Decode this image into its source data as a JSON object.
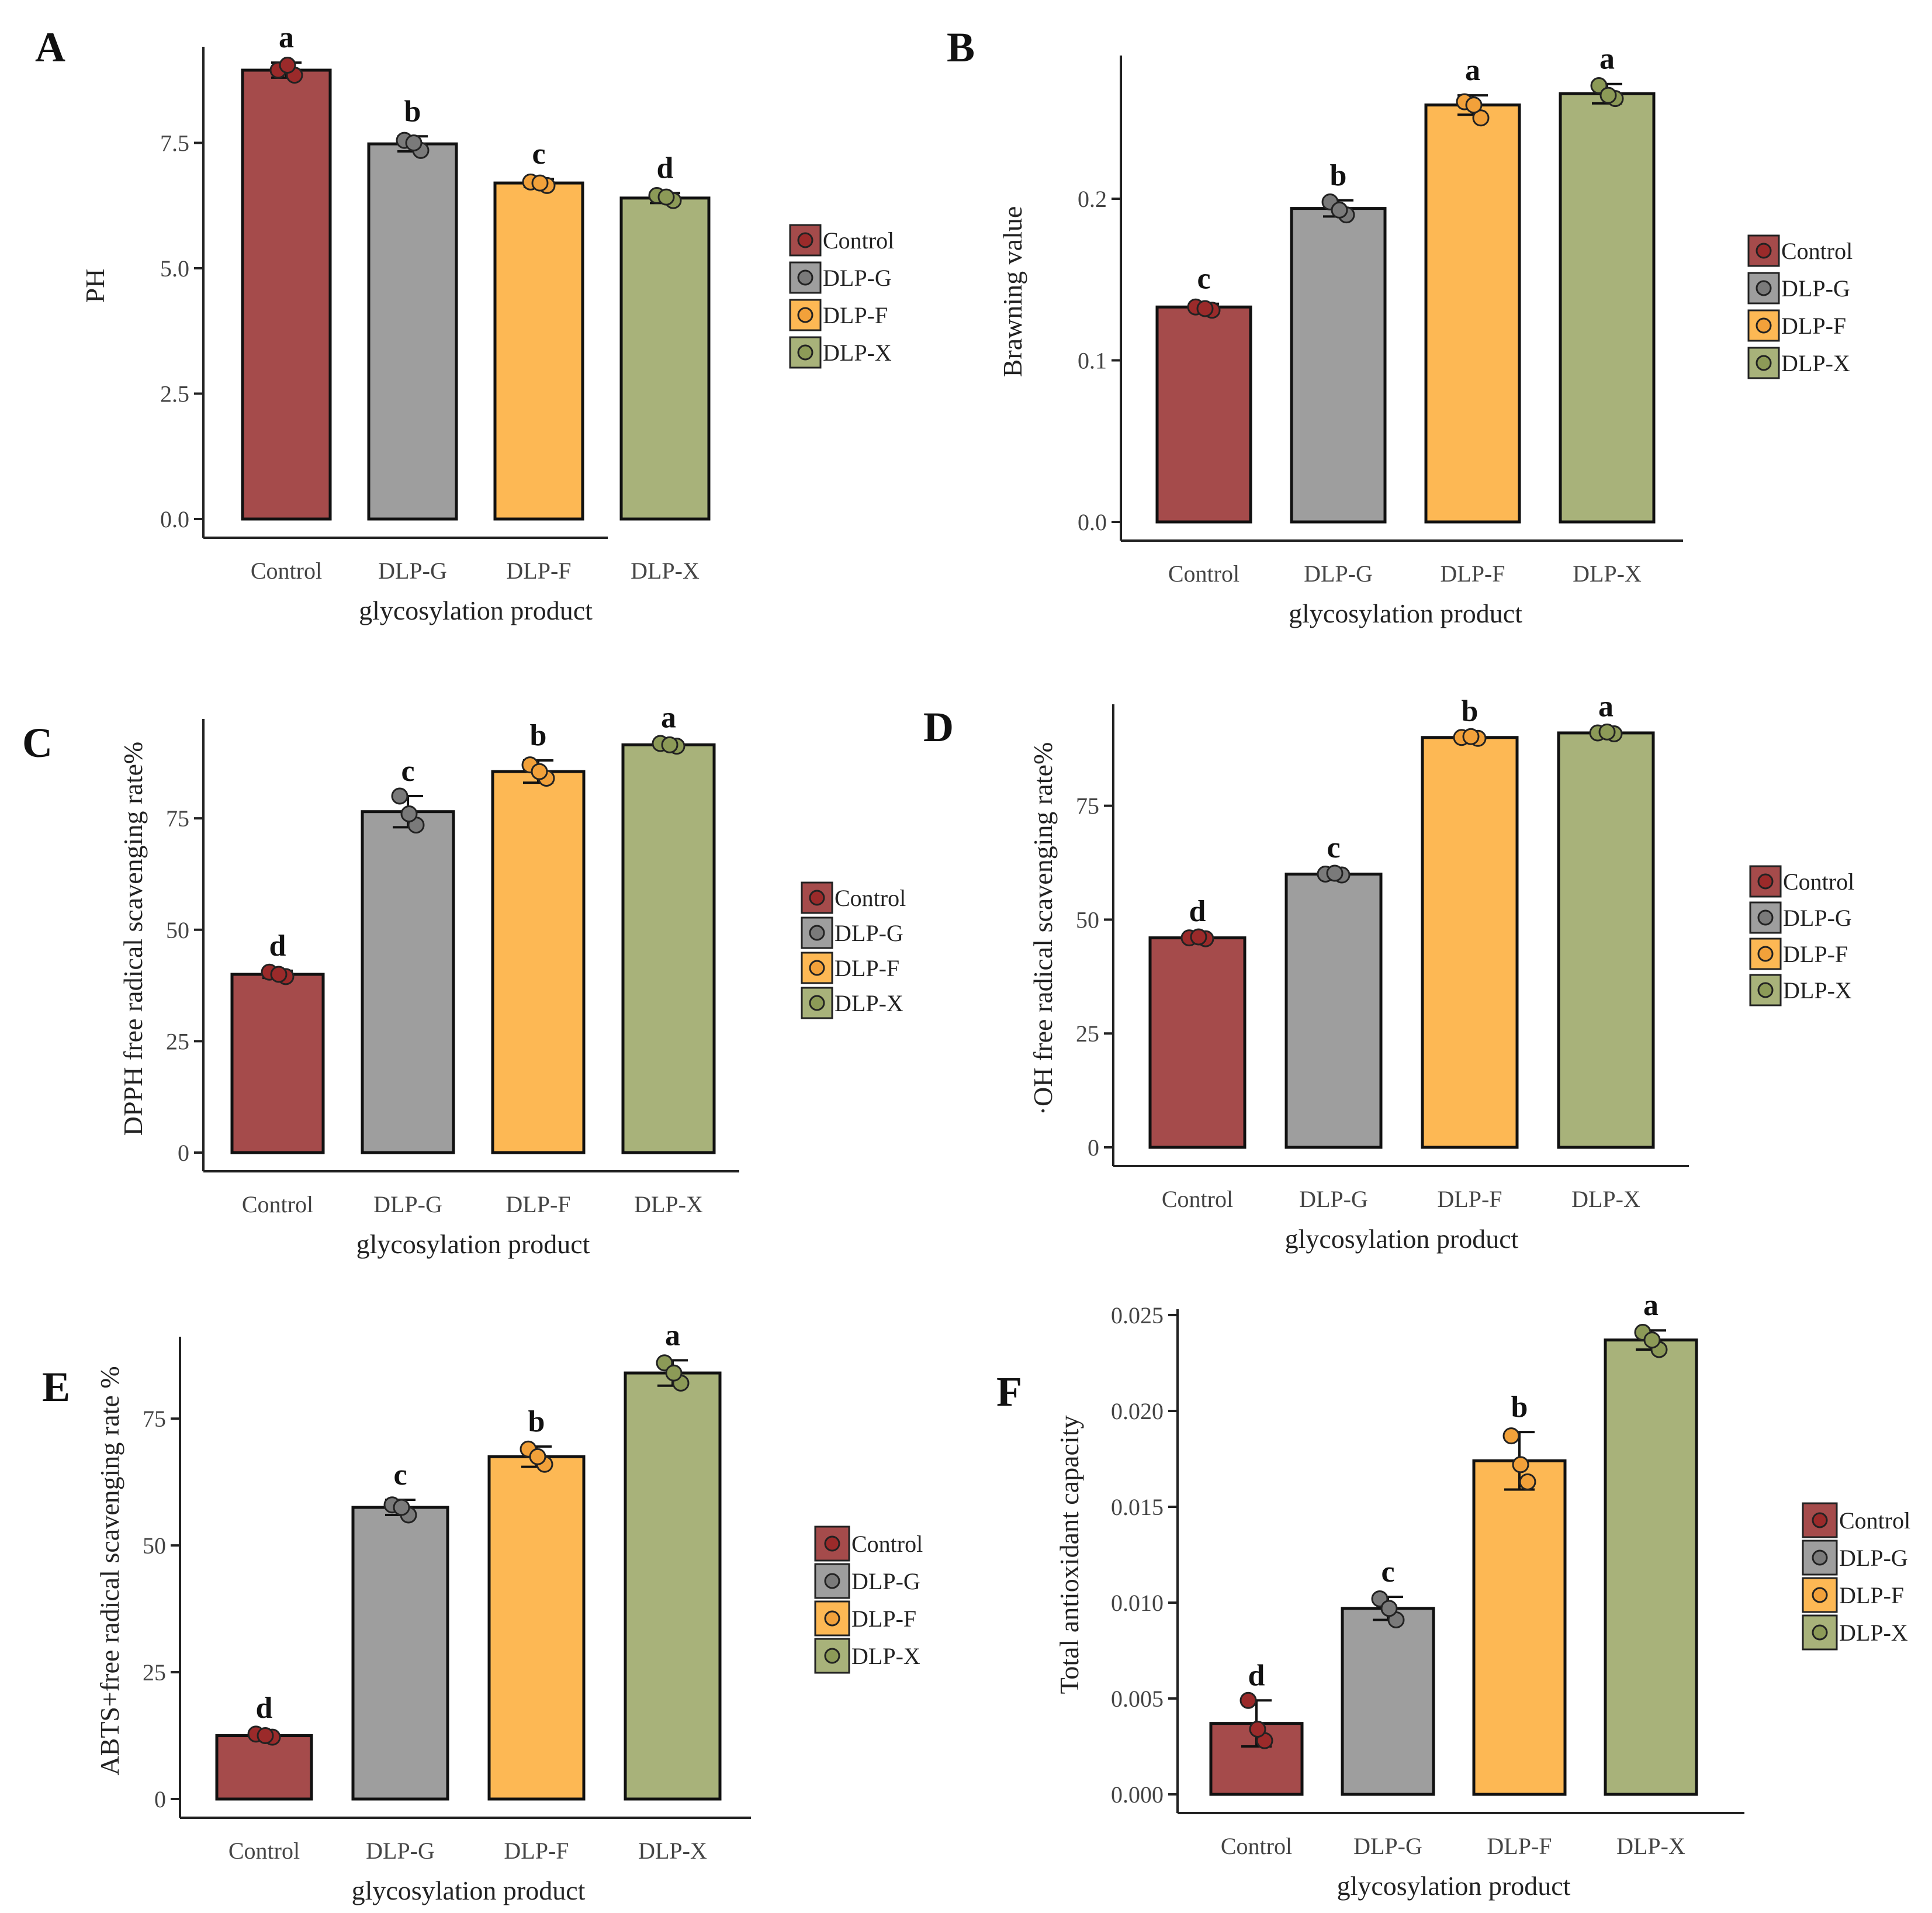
{
  "figure": {
    "x_axis_title": "glycosylation product",
    "legend_entries": [
      "Control",
      "DLP-G",
      "DLP-F",
      "DLP-X"
    ],
    "colors": {
      "Control": "#a54b4b",
      "DLP-G": "#9e9e9e",
      "DLP-F": "#fdb854",
      "DLP-X": "#a8b27a"
    },
    "point_colors": {
      "Control": "#9b2a2a",
      "DLP-G": "#7a7a7a",
      "DLP-F": "#f2a13a",
      "DLP-X": "#8c9a57"
    }
  },
  "chart_data": [
    {
      "panel": "A",
      "type": "bar",
      "title": "",
      "categories": [
        "Control",
        "DLP-G",
        "DLP-F",
        "DLP-X"
      ],
      "values": [
        8.95,
        7.48,
        6.7,
        6.4
      ],
      "errors": [
        0.15,
        0.15,
        0.08,
        0.1
      ],
      "points": [
        [
          8.95,
          8.85,
          9.05
        ],
        [
          7.55,
          7.35,
          7.5
        ],
        [
          6.72,
          6.65,
          6.7
        ],
        [
          6.45,
          6.35,
          6.42
        ]
      ],
      "significance": [
        "a",
        "b",
        "c",
        "d"
      ],
      "xlabel": "glycosylation product",
      "ylabel": "PH",
      "ylim": [
        0,
        9.3
      ],
      "yticks": [
        0,
        2.5,
        5,
        7.5
      ],
      "ytick_labels": [
        "0.0",
        "2.5",
        "5.0",
        "7.5"
      ],
      "legend": [
        "Control",
        "DLP-G",
        "DLP-F",
        "DLP-X"
      ]
    },
    {
      "panel": "B",
      "type": "bar",
      "title": "",
      "categories": [
        "Control",
        "DLP-G",
        "DLP-F",
        "DLP-X"
      ],
      "values": [
        0.133,
        0.194,
        0.258,
        0.265
      ],
      "errors": [
        0.002,
        0.005,
        0.006,
        0.006
      ],
      "points": [
        [
          0.133,
          0.131,
          0.132
        ],
        [
          0.198,
          0.19,
          0.193
        ],
        [
          0.26,
          0.25,
          0.258
        ],
        [
          0.27,
          0.262,
          0.264
        ]
      ],
      "significance": [
        "c",
        "b",
        "a",
        "a"
      ],
      "xlabel": "glycosylation product",
      "ylabel": "Brawning value",
      "ylim": [
        0,
        0.285
      ],
      "yticks": [
        0,
        0.1,
        0.2
      ],
      "ytick_labels": [
        "0.0",
        "0.1",
        "0.2"
      ],
      "legend": [
        "Control",
        "DLP-G",
        "DLP-F",
        "DLP-X"
      ]
    },
    {
      "panel": "C",
      "type": "bar",
      "title": "",
      "categories": [
        "Control",
        "DLP-G",
        "DLP-F",
        "DLP-X"
      ],
      "values": [
        40,
        76.5,
        85.5,
        91.5
      ],
      "errors": [
        0.8,
        3.5,
        2.5,
        0.5
      ],
      "points": [
        [
          40.5,
          39.5,
          40
        ],
        [
          80,
          73.5,
          76
        ],
        [
          87,
          84,
          85.5
        ],
        [
          91.8,
          91.2,
          91.5
        ]
      ],
      "significance": [
        "d",
        "c",
        "b",
        "a"
      ],
      "xlabel": "glycosylation product",
      "ylabel": "DPPH free radical scavenging rate%",
      "ylim": [
        0,
        96
      ],
      "yticks": [
        0,
        25,
        50,
        75
      ],
      "ytick_labels": [
        "0",
        "25",
        "50",
        "75"
      ],
      "legend": [
        "Control",
        "DLP-G",
        "DLP-F",
        "DLP-X"
      ]
    },
    {
      "panel": "D",
      "type": "bar",
      "title": "",
      "categories": [
        "Control",
        "DLP-G",
        "DLP-F",
        "DLP-X"
      ],
      "values": [
        46,
        60,
        90,
        91
      ],
      "errors": [
        0.3,
        0.3,
        0.3,
        0.3
      ],
      "points": [
        [
          46,
          45.8,
          46.2
        ],
        [
          60,
          59.8,
          60.2
        ],
        [
          90,
          89.8,
          90.2
        ],
        [
          91,
          90.8,
          91.2
        ]
      ],
      "significance": [
        "d",
        "c",
        "b",
        "a"
      ],
      "xlabel": "glycosylation product",
      "ylabel": "·OH free radical scavenging rate%",
      "ylim": [
        0,
        96
      ],
      "yticks": [
        0,
        25,
        50,
        75
      ],
      "ytick_labels": [
        "0",
        "25",
        "50",
        "75"
      ],
      "legend": [
        "Control",
        "DLP-G",
        "DLP-F",
        "DLP-X"
      ]
    },
    {
      "panel": "E",
      "type": "bar",
      "title": "",
      "categories": [
        "Control",
        "DLP-G",
        "DLP-F",
        "DLP-X"
      ],
      "values": [
        12.5,
        57.5,
        67.5,
        84
      ],
      "errors": [
        0.5,
        1.5,
        2,
        2.5
      ],
      "points": [
        [
          12.8,
          12.2,
          12.5
        ],
        [
          58,
          56,
          57.5
        ],
        [
          69,
          66,
          67.5
        ],
        [
          86,
          82,
          84
        ]
      ],
      "significance": [
        "d",
        "c",
        "b",
        "a"
      ],
      "xlabel": "glycosylation product",
      "ylabel": "ABTS+free radical scavenging rate %",
      "ylim": [
        0,
        90
      ],
      "yticks": [
        0,
        25,
        50,
        75
      ],
      "ytick_labels": [
        "0",
        "25",
        "50",
        "75"
      ],
      "legend": [
        "Control",
        "DLP-G",
        "DLP-F",
        "DLP-X"
      ]
    },
    {
      "panel": "F",
      "type": "bar",
      "title": "",
      "categories": [
        "Control",
        "DLP-G",
        "DLP-F",
        "DLP-X"
      ],
      "values": [
        0.0037,
        0.0097,
        0.0174,
        0.0237
      ],
      "errors": [
        0.0012,
        0.0006,
        0.0015,
        0.0005
      ],
      "points": [
        [
          0.0049,
          0.0028,
          0.0034
        ],
        [
          0.0102,
          0.0091,
          0.0097
        ],
        [
          0.0187,
          0.0163,
          0.0172
        ],
        [
          0.0241,
          0.0232,
          0.0237
        ]
      ],
      "significance": [
        "d",
        "c",
        "b",
        "a"
      ],
      "xlabel": "glycosylation product",
      "ylabel": "Total antioxidant capacity",
      "ylim": [
        0,
        0.025
      ],
      "yticks": [
        0,
        0.005,
        0.01,
        0.015,
        0.02,
        0.025
      ],
      "ytick_labels": [
        "0.000",
        "0.005",
        "0.010",
        "0.015",
        "0.020",
        "0.025"
      ],
      "legend": [
        "Control",
        "DLP-G",
        "DLP-F",
        "DLP-X"
      ]
    }
  ]
}
